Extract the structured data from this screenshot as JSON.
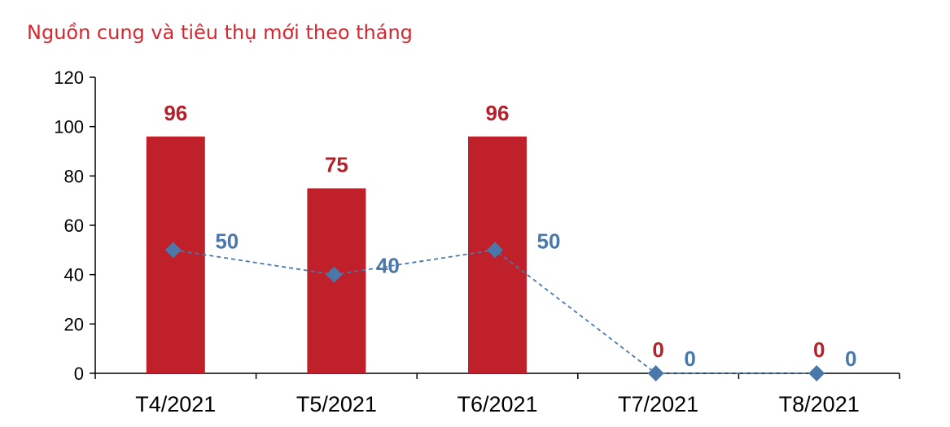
{
  "title": "Nguồn cung và tiêu thụ mới theo tháng",
  "colors": {
    "title": "#d7262e",
    "bars": "#c0202a",
    "bar_labels": "#b5202a",
    "line": "#4a78a8",
    "line_labels": "#4a78a8",
    "axis": "#000000"
  },
  "chart_data": {
    "type": "bar",
    "title": "Nguồn cung và tiêu thụ mới theo tháng",
    "xlabel": "",
    "ylabel": "",
    "categories": [
      "T4/2021",
      "T5/2021",
      "T6/2021",
      "T7/2021",
      "T8/2021"
    ],
    "ylim": [
      0,
      120
    ],
    "yticks": [
      0,
      20,
      40,
      60,
      80,
      100,
      120
    ],
    "grid": false,
    "legend": "none",
    "series": [
      {
        "type": "bar",
        "values": [
          96,
          75,
          96,
          0,
          0
        ],
        "data_labels": [
          "96",
          "75",
          "96",
          "0",
          "0"
        ]
      },
      {
        "type": "line",
        "style": "dashed",
        "marker": "diamond",
        "values": [
          50,
          40,
          50,
          0,
          0
        ],
        "data_labels": [
          "50",
          "40",
          "50",
          "0",
          "0"
        ]
      }
    ]
  }
}
